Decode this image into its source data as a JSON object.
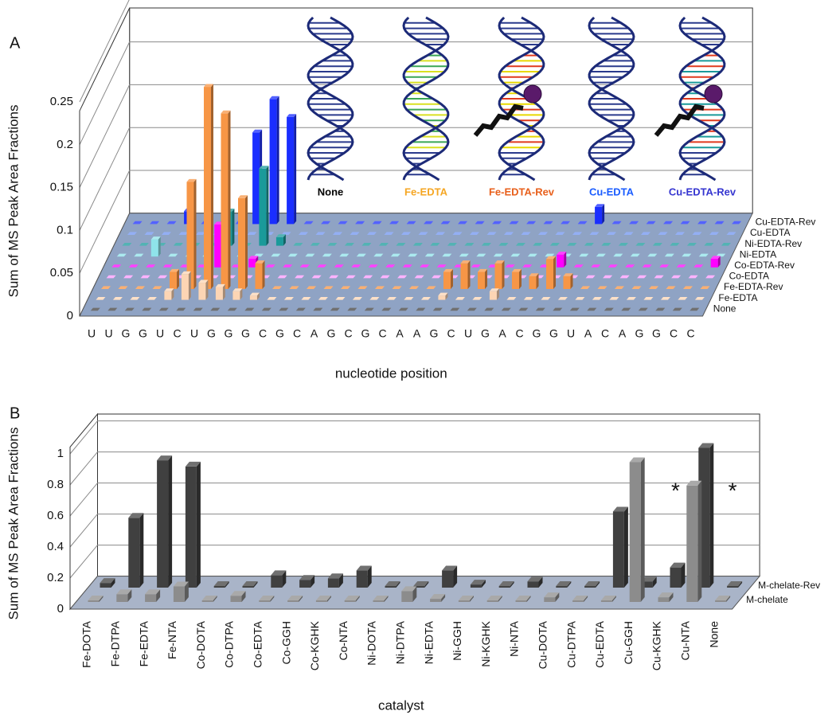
{
  "chart_data": [
    {
      "type": "bar3d",
      "panel_label": "A",
      "y_label": "Sum of MS Peak Area Fractions",
      "x_label": "nucleotide position",
      "categories": [
        "U",
        "U",
        "G",
        "G",
        "U",
        "C",
        "U",
        "G",
        "G",
        "G",
        "C",
        "G",
        "C",
        "A",
        "G",
        "C",
        "G",
        "C",
        "A",
        "A",
        "G",
        "C",
        "U",
        "G",
        "A",
        "C",
        "G",
        "G",
        "U",
        "A",
        "C",
        "A",
        "G",
        "G",
        "C",
        "C"
      ],
      "ylim": [
        0,
        0.25
      ],
      "yticks": [
        0,
        0.05,
        0.1,
        0.15,
        0.2,
        0.25
      ],
      "grid": true,
      "series": [
        {
          "name": "None",
          "color": "#404040",
          "values": [
            0,
            0,
            0,
            0,
            0,
            0,
            0,
            0,
            0,
            0,
            0,
            0,
            0,
            0,
            0,
            0,
            0,
            0,
            0,
            0,
            0,
            0,
            0,
            0,
            0,
            0,
            0,
            0,
            0,
            0,
            0,
            0,
            0,
            0,
            0,
            0
          ]
        },
        {
          "name": "Fe-EDTA",
          "color": "#fcd5b4",
          "values": [
            0,
            0,
            0,
            0,
            0.01,
            0.03,
            0.02,
            0.015,
            0.01,
            0.005,
            0,
            0,
            0,
            0,
            0,
            0,
            0,
            0,
            0,
            0,
            0.005,
            0,
            0,
            0.01,
            0,
            0,
            0,
            0,
            0,
            0,
            0,
            0,
            0,
            0,
            0,
            0
          ]
        },
        {
          "name": "Fe-EDTA-Rev",
          "color": "#f79646",
          "values": [
            0,
            0,
            0,
            0,
            0.02,
            0.125,
            0.236,
            0.205,
            0.106,
            0.03,
            0,
            0,
            0,
            0,
            0,
            0,
            0,
            0,
            0,
            0,
            0.02,
            0.03,
            0.02,
            0.03,
            0.02,
            0.015,
            0.035,
            0.015,
            0,
            0,
            0,
            0,
            0,
            0,
            0,
            0
          ]
        },
        {
          "name": "Co-EDTA",
          "color": "#ff99ff",
          "values": [
            0,
            0,
            0,
            0,
            0,
            0,
            0,
            0,
            0,
            0,
            0,
            0,
            0,
            0,
            0,
            0,
            0,
            0,
            0,
            0,
            0,
            0,
            0,
            0,
            0,
            0,
            0,
            0,
            0,
            0,
            0,
            0,
            0,
            0,
            0,
            0
          ]
        },
        {
          "name": "Co-EDTA-Rev",
          "color": "#ff00ff",
          "values": [
            0,
            0,
            0,
            0,
            0,
            0,
            0.05,
            0,
            0.01,
            0,
            0,
            0,
            0,
            0,
            0,
            0,
            0,
            0,
            0,
            0,
            0,
            0,
            0,
            0,
            0,
            0,
            0.015,
            0,
            0,
            0,
            0,
            0,
            0,
            0,
            0,
            0.01
          ]
        },
        {
          "name": "Ni-EDTA",
          "color": "#8fe3ea",
          "values": [
            0,
            0,
            0.02,
            0,
            0,
            0,
            0,
            0,
            0,
            0,
            0,
            0,
            0,
            0,
            0,
            0,
            0,
            0,
            0,
            0,
            0,
            0,
            0,
            0,
            0,
            0,
            0,
            0,
            0,
            0,
            0,
            0,
            0,
            0,
            0,
            0
          ]
        },
        {
          "name": "Ni-EDTA-Rev",
          "color": "#1a9a9a",
          "values": [
            0,
            0,
            0,
            0,
            0,
            0,
            0.04,
            0,
            0.09,
            0.01,
            0,
            0,
            0,
            0,
            0,
            0,
            0,
            0,
            0,
            0,
            0,
            0,
            0,
            0,
            0,
            0,
            0,
            0,
            0,
            0,
            0,
            0,
            0,
            0,
            0,
            0
          ]
        },
        {
          "name": "Cu-EDTA",
          "color": "#6f94f0",
          "values": [
            0,
            0,
            0,
            0,
            0,
            0,
            0,
            0,
            0,
            0,
            0,
            0,
            0,
            0,
            0,
            0,
            0,
            0,
            0,
            0,
            0,
            0,
            0,
            0,
            0,
            0,
            0,
            0,
            0,
            0,
            0,
            0,
            0,
            0,
            0,
            0
          ]
        },
        {
          "name": "Cu-EDTA-Rev",
          "color": "#1a2eff",
          "values": [
            0,
            0,
            0,
            0.015,
            0,
            0,
            0,
            0.107,
            0.146,
            0.125,
            0,
            0,
            0,
            0,
            0,
            0,
            0,
            0,
            0,
            0,
            0,
            0,
            0,
            0,
            0,
            0,
            0,
            0.02,
            0,
            0,
            0,
            0,
            0,
            0,
            0,
            0
          ]
        }
      ],
      "inset_labels": [
        {
          "text": "None",
          "color": "#000000"
        },
        {
          "text": "Fe-EDTA",
          "color": "#f5a623"
        },
        {
          "text": "Fe-EDTA-Rev",
          "color": "#e8601c"
        },
        {
          "text": "Cu-EDTA",
          "color": "#1a5cff"
        },
        {
          "text": "Cu-EDTA-Rev",
          "color": "#3535d0"
        }
      ]
    },
    {
      "type": "bar3d",
      "panel_label": "B",
      "y_label": "Sum of MS Peak Area Fractions",
      "x_label": "catalyst",
      "categories": [
        "Fe-DOTA",
        "Fe-DTPA",
        "Fe-EDTA",
        "Fe-NTA",
        "Co-DOTA",
        "Co-DTPA",
        "Co-EDTA",
        "Co-GGH",
        "Co-KGHK",
        "Co-NTA",
        "Ni-DOTA",
        "Ni-DTPA",
        "Ni-EDTA",
        "Ni-GGH",
        "Ni-KGHK",
        "Ni-NTA",
        "Cu-DOTA",
        "Cu-DTPA",
        "Cu-EDTA",
        "Cu-GGH",
        "Cu-KGHK",
        "Cu-NTA",
        "None"
      ],
      "ylim": [
        0,
        1
      ],
      "yticks": [
        0,
        0.2,
        0.4,
        0.6,
        0.8,
        1
      ],
      "grid": true,
      "series": [
        {
          "name": "M-chelate",
          "color": "#8c8c8c",
          "values": [
            0.01,
            0.05,
            0.05,
            0.1,
            0.01,
            0.04,
            0.01,
            0.01,
            0.01,
            0.01,
            0.01,
            0.07,
            0.02,
            0.01,
            0.01,
            0.01,
            0.03,
            0.01,
            0.01,
            0.9,
            0.03,
            0.75,
            0.01
          ]
        },
        {
          "name": "M-chelate-Rev",
          "color": "#404040",
          "values": [
            0.03,
            0.45,
            0.82,
            0.78,
            0.01,
            0.01,
            0.08,
            0.05,
            0.06,
            0.11,
            0.01,
            0.01,
            0.11,
            0.02,
            0.01,
            0.04,
            0.01,
            0.01,
            0.49,
            0.04,
            0.13,
            0.9,
            0.01
          ]
        }
      ],
      "annotations": [
        {
          "text": "*",
          "category": "Cu-KGHK"
        },
        {
          "text": "*",
          "category": "None"
        }
      ]
    }
  ]
}
